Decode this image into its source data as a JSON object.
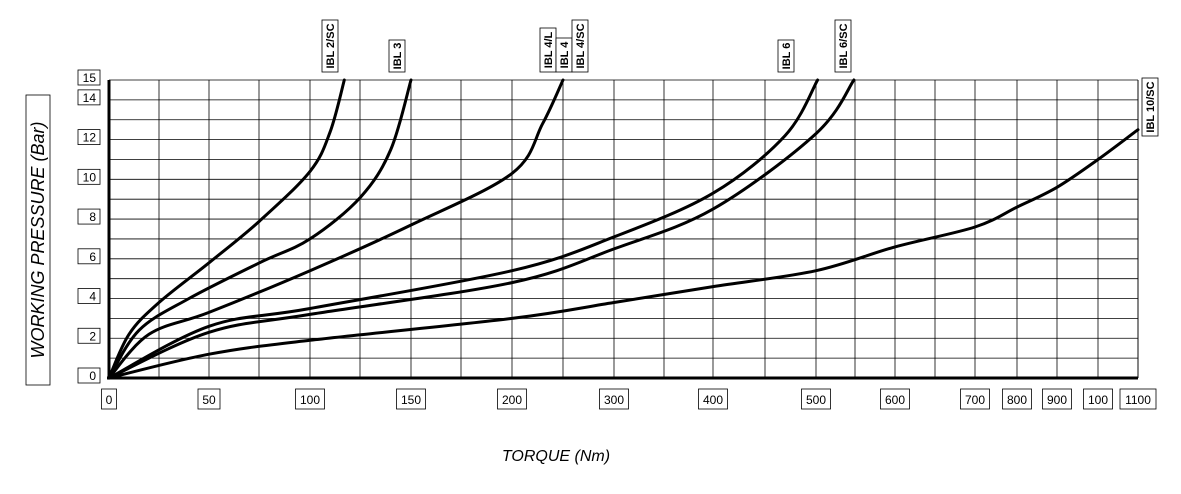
{
  "chart_data": {
    "type": "line",
    "xlabel": "TORQUE (Nm)",
    "ylabel": "WORKING PRESSURE (Bar)",
    "ylim": [
      0,
      15
    ],
    "grid": true,
    "x_ticks": [
      "0",
      "50",
      "100",
      "150",
      "200",
      "300",
      "400",
      "500",
      "600",
      "700",
      "800",
      "900",
      "100",
      "1100"
    ],
    "y_ticks": [
      "0",
      "2",
      "4",
      "6",
      "8",
      "10",
      "12",
      "14",
      "15"
    ],
    "series": [
      {
        "name": "IBL 2/SC",
        "points": [
          [
            0,
            0
          ],
          [
            10,
            2.2
          ],
          [
            25,
            3.8
          ],
          [
            50,
            5.8
          ],
          [
            75,
            7.9
          ],
          [
            100,
            10.4
          ],
          [
            110,
            12.4
          ],
          [
            117,
            15
          ]
        ]
      },
      {
        "name": "IBL 3",
        "points": [
          [
            0,
            0
          ],
          [
            15,
            2.4
          ],
          [
            40,
            4
          ],
          [
            75,
            5.8
          ],
          [
            100,
            7
          ],
          [
            125,
            9.1
          ],
          [
            140,
            11.5
          ],
          [
            150,
            15
          ]
        ]
      },
      {
        "name": "IBL 4/L",
        "points": [
          [
            0,
            0
          ],
          [
            20,
            2.2
          ],
          [
            50,
            3.3
          ],
          [
            100,
            5.4
          ],
          [
            150,
            7.7
          ],
          [
            200,
            10.3
          ],
          [
            230,
            12.8
          ],
          [
            250,
            15
          ]
        ]
      },
      {
        "name": "IBL 4",
        "points": [
          [
            0,
            0
          ],
          [
            50,
            2.6
          ],
          [
            100,
            3.5
          ],
          [
            200,
            5.4
          ],
          [
            300,
            7.1
          ],
          [
            400,
            9.3
          ],
          [
            470,
            12.2
          ],
          [
            502,
            15
          ]
        ]
      },
      {
        "name": "IBL 4/SC",
        "points": [
          [
            0,
            0
          ],
          [
            50,
            2.3
          ],
          [
            100,
            3.2
          ],
          [
            200,
            4.8
          ],
          [
            300,
            6.5
          ],
          [
            400,
            8.5
          ],
          [
            500,
            12.3
          ],
          [
            548,
            15
          ]
        ]
      },
      {
        "name": "IBL 6",
        "points": []
      },
      {
        "name": "IBL 6/SC",
        "points": []
      },
      {
        "name": "IBL 10/SC",
        "points": [
          [
            0,
            0
          ],
          [
            50,
            1.2
          ],
          [
            100,
            1.9
          ],
          [
            200,
            3
          ],
          [
            300,
            3.8
          ],
          [
            400,
            4.6
          ],
          [
            500,
            5.4
          ],
          [
            600,
            6.6
          ],
          [
            700,
            7.6
          ],
          [
            800,
            8.6
          ],
          [
            900,
            9.6
          ],
          [
            1000,
            11
          ],
          [
            1100,
            12.5
          ]
        ]
      }
    ]
  }
}
